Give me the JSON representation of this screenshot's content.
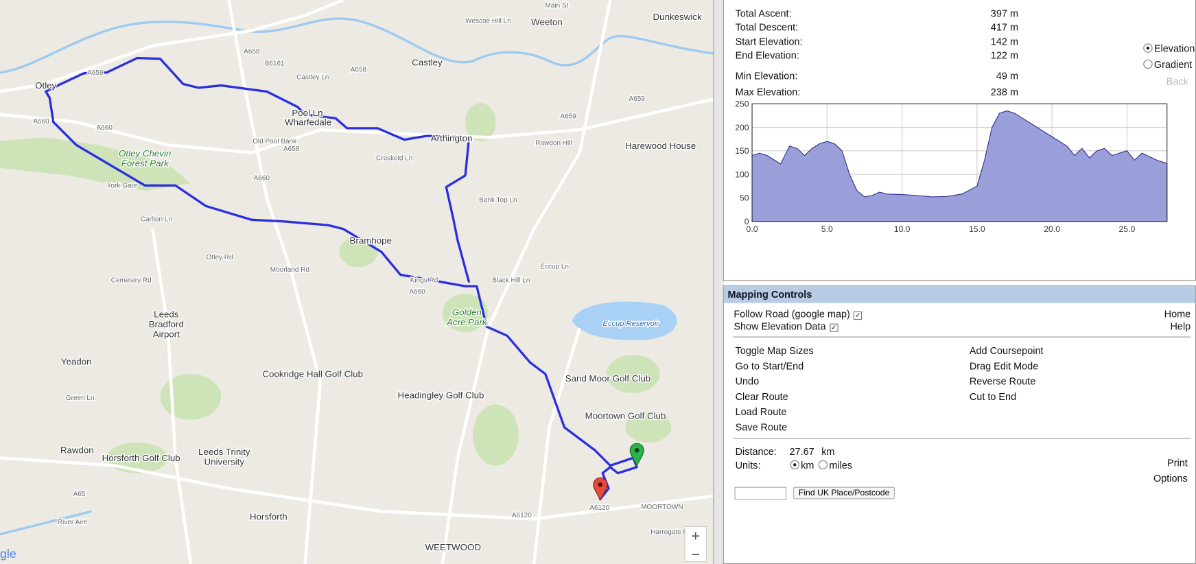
{
  "stats": [
    {
      "label": "Total Ascent:",
      "value": "397 m"
    },
    {
      "label": "Total Descent:",
      "value": "417 m"
    },
    {
      "label": "Start Elevation:",
      "value": "142 m"
    },
    {
      "label": "End Elevation:",
      "value": "122 m"
    },
    {
      "label": "Min Elevation:",
      "value": "49 m"
    },
    {
      "label": "Max Elevation:",
      "value": "238 m"
    }
  ],
  "view_options": [
    "Elevation",
    "Gradient"
  ],
  "back": "Back",
  "chart_data": {
    "type": "area",
    "x": [
      0,
      0.5,
      1,
      1.5,
      1.9,
      2.5,
      3,
      3.5,
      4,
      4.5,
      5,
      5.5,
      6,
      6.5,
      7,
      7.5,
      8,
      8.5,
      9,
      10,
      11,
      12,
      13,
      14,
      15,
      15.5,
      16,
      16.5,
      17,
      17.5,
      18,
      19,
      20,
      21,
      21.5,
      22,
      22.5,
      23,
      23.5,
      24,
      25,
      25.5,
      26,
      27,
      27.67
    ],
    "values": [
      140,
      145,
      140,
      130,
      122,
      160,
      155,
      140,
      155,
      165,
      170,
      165,
      150,
      100,
      65,
      52,
      55,
      62,
      58,
      57,
      55,
      52,
      53,
      58,
      75,
      130,
      200,
      230,
      235,
      230,
      220,
      200,
      180,
      160,
      140,
      155,
      135,
      150,
      155,
      140,
      150,
      130,
      145,
      130,
      123
    ],
    "xlim": [
      0,
      27.67
    ],
    "ylim": [
      0,
      250
    ],
    "xticks": [
      {
        "value": 0,
        "label": "0.0"
      },
      {
        "value": 5,
        "label": "5.0"
      },
      {
        "value": 10,
        "label": "10.0"
      },
      {
        "value": 15,
        "label": "15.0"
      },
      {
        "value": 20,
        "label": "20.0"
      },
      {
        "value": 25,
        "label": "25.0"
      }
    ],
    "yticks": [
      0,
      50,
      100,
      150,
      200,
      250
    ],
    "color": "#9a9fd9",
    "grid": true
  },
  "controls": {
    "title": "Mapping Controls",
    "options": [
      "Follow Road (google map)",
      "Show Elevation Data"
    ],
    "links": [
      "Home",
      "Help"
    ],
    "actions_left": [
      "Toggle Map Sizes",
      "Go to Start/End",
      "Undo",
      "Clear Route",
      "Load Route",
      "Save Route"
    ],
    "actions_right": [
      "Add Coursepoint",
      "Drag Edit Mode",
      "Reverse Route",
      "Cut to End"
    ],
    "distance_label": "Distance:",
    "distance_value": "27.67",
    "distance_unit": "km",
    "units_label": "Units:",
    "units": [
      "km",
      "miles"
    ],
    "print": "Print",
    "options_link": "Options",
    "find_button": "Find UK Place/Postcode"
  },
  "map": {
    "labels": [
      "Otley",
      "A659",
      "B6161",
      "A658",
      "Castley Ln",
      "Castley",
      "Weeton",
      "Main St",
      "Dunkeswick",
      "A658",
      "Wescoe Hill Ln",
      "Pool Ln",
      "Wharfedale",
      "A659",
      "Arthington",
      "A659",
      "Harewood House",
      "Rawdon Hill",
      "A660",
      "A660",
      "Otley Chevin",
      "Forest Park",
      "Old Pool Bank",
      "A660",
      "A658",
      "Creskeld Ln",
      "York Gate",
      "Bank Top Ln",
      "Bramhope",
      "Leeds",
      "Bradford",
      "Airport",
      "Golden",
      "Acre Park",
      "Eccup Reservoir",
      "Black Hill Ln",
      "Kings Rd",
      "A660",
      "Yeadon",
      "Cookridge Hall Golf Club",
      "Headingley Golf Club",
      "Sand Moor Golf Club",
      "Moortown Golf Club",
      "Rawdon",
      "Horsforth Golf Club",
      "Leeds Trinity",
      "University",
      "Horsforth",
      "WEETWOOD",
      "MOORTOWN",
      "A6120",
      "A6120",
      "A65",
      "River Aire",
      "Eccup Ln",
      "Otley Rd",
      "Moorland Rd",
      "Carlton Ln",
      "Cemetery Rd",
      "Green Ln",
      "Harrogate Rd"
    ],
    "zoom_in": "+",
    "zoom_out": "−",
    "logo": "gle"
  }
}
